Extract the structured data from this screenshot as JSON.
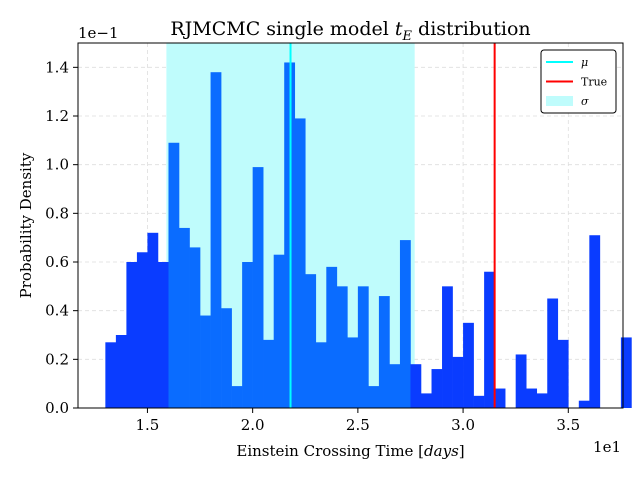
{
  "chart_data": {
    "type": "bar",
    "title": "RJMCMC single model t_E distribution",
    "title_parts": {
      "prefix": "RJMCMC single model ",
      "var": "t",
      "sub": "E",
      "suffix": " distribution"
    },
    "xlabel": "Einstein Crossing Time [days]",
    "xlabel_parts": {
      "prefix": "Einstein Crossing Time [",
      "unit": "days",
      "suffix": "]"
    },
    "ylabel": "Probability Density",
    "x_offset_text": "1e1",
    "y_offset_text": "1e−1",
    "xlim": [
      1.22,
      1.64
    ],
    "ylim": [
      0,
      1.5
    ],
    "grid": true,
    "x_ticks": [
      {
        "value": 1.5,
        "label": "1.5"
      },
      {
        "value": 2.0,
        "label": "2.0"
      },
      {
        "value": 2.5,
        "label": "2.5"
      },
      {
        "value": 3.0,
        "label": "3.0"
      },
      {
        "value": 3.5,
        "label": "3.5"
      }
    ],
    "y_ticks": [
      {
        "value": 0.0,
        "label": "0.0"
      },
      {
        "value": 0.2,
        "label": "0.2"
      },
      {
        "value": 0.4,
        "label": "0.4"
      },
      {
        "value": 0.6,
        "label": "0.6"
      },
      {
        "value": 0.8,
        "label": "0.8"
      },
      {
        "value": 1.0,
        "label": "1.0"
      },
      {
        "value": 1.2,
        "label": "1.2"
      },
      {
        "value": 1.4,
        "label": "1.4"
      }
    ],
    "bin_edges_start": 1.3,
    "bin_width": 0.05,
    "values": [
      0.27,
      0.3,
      0.6,
      0.64,
      0.72,
      0.6,
      1.09,
      0.74,
      0.66,
      0.38,
      1.38,
      0.41,
      0.09,
      0.6,
      0.99,
      0.28,
      0.63,
      1.42,
      1.19,
      0.55,
      0.27,
      0.58,
      0.5,
      0.29,
      0.5,
      0.09,
      0.46,
      0.18,
      0.69,
      0.18,
      0.06,
      0.16,
      0.5,
      0.21,
      0.35,
      0.05,
      0.56,
      0.08,
      0,
      0.22,
      0.08,
      0.06,
      0.45,
      0.28,
      0,
      0.03,
      0.71,
      0,
      0,
      0.29
    ],
    "mean": 2.18,
    "sigma_range": [
      1.59,
      2.77
    ],
    "true_value": 3.15,
    "legend": [
      {
        "label": "μ",
        "kind": "line",
        "color": "#00ffff"
      },
      {
        "label": "True",
        "kind": "line",
        "color": "#ff0000"
      },
      {
        "label": "σ",
        "kind": "patch",
        "color": "#bffcfc"
      }
    ],
    "legend_position": "upper-right",
    "colors": {
      "bar_outside": "#0a3cff",
      "bar_inside": "#0a6cff",
      "sigma_band": "#bffcfc",
      "mean_line": "#00ffff",
      "true_line": "#ff0000",
      "grid": "#dddddd"
    }
  }
}
